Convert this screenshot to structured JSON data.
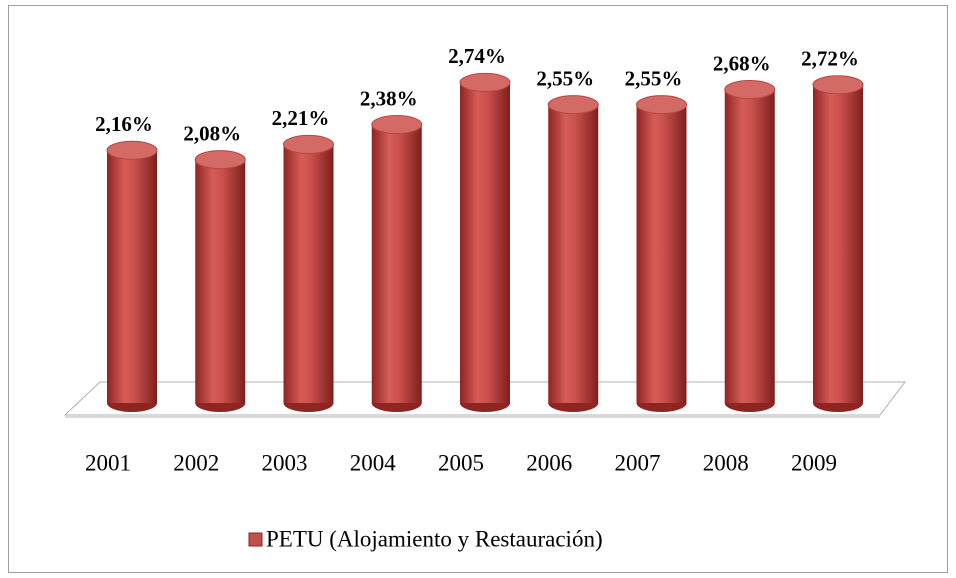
{
  "chart_data": {
    "type": "bar",
    "categories": [
      "2001",
      "2002",
      "2003",
      "2004",
      "2005",
      "2006",
      "2007",
      "2008",
      "2009"
    ],
    "series": [
      {
        "name": "PETU (Alojamiento y Restauración)",
        "color": "#c0504d",
        "values": [
          2.16,
          2.08,
          2.21,
          2.38,
          2.74,
          2.55,
          2.55,
          2.68,
          2.72
        ],
        "value_labels": [
          "2,16%",
          "2,08%",
          "2,21%",
          "2,38%",
          "2,74%",
          "2,55%",
          "2,55%",
          "2,68%",
          "2,72%"
        ]
      }
    ],
    "legend": "bottom"
  }
}
